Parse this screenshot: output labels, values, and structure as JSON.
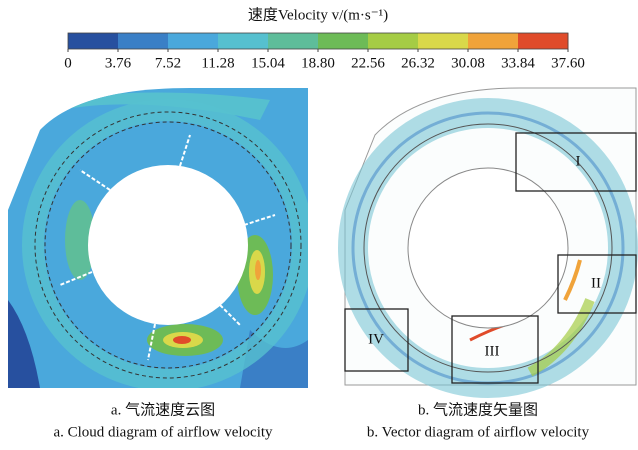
{
  "colorbar": {
    "title": "速度Velocity v/(m·s⁻¹)",
    "lim": [
      0,
      37.6
    ],
    "ticks": [
      0,
      3.76,
      7.52,
      11.28,
      15.04,
      {
        "value": 18.8,
        "label": "18.80"
      },
      22.56,
      26.32,
      30.08,
      33.84,
      {
        "value": 37.6,
        "label": "37.60"
      }
    ],
    "colors": [
      "#27509f",
      "#3a7fc6",
      "#4aa8dc",
      "#56c0cf",
      "#5ebd9a",
      "#6dbb57",
      "#a5cc45",
      "#d9d84a",
      "#f0a33a",
      "#e04b2a"
    ]
  },
  "panels": [
    {
      "caption_cn": "a. 气流速度云图",
      "caption_en": "a. Cloud diagram of airflow velocity"
    },
    {
      "caption_cn": "b. 气流速度矢量图",
      "caption_en": "b. Vector diagram of airflow velocity",
      "regions": [
        "I",
        "II",
        "III",
        "IV"
      ]
    }
  ]
}
